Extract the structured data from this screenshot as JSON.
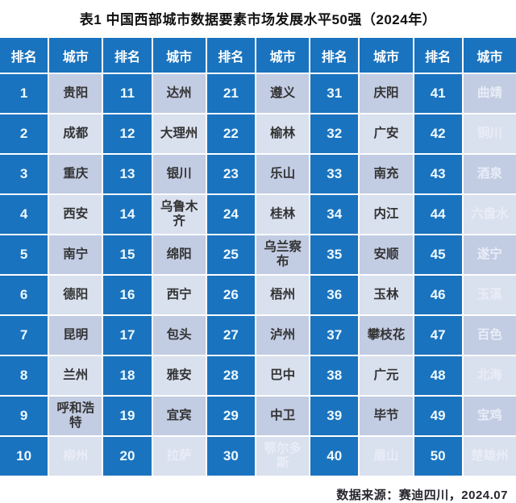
{
  "title": "表1 中国西部城市数据要素市场发展水平50强（2024年）",
  "source": "数据来源：赛迪四川，2024.07",
  "table_headers": {
    "rank": "排名",
    "city": "城市"
  },
  "colors": {
    "cell_blue": "#1a73be",
    "city_cell_odd_row": "#c2cce3",
    "city_cell_even_row": "#d9e0ee",
    "city_text": "#333333",
    "faint_city_text": "#e9edf7",
    "header_text": "#ffffff",
    "title_text": "#111111",
    "source_text": "#26262e"
  },
  "chart_data": {
    "type": "table",
    "title": "表1 中国西部城市数据要素市场发展水平50强（2024年）",
    "columns_pattern": [
      "排名",
      "城市"
    ],
    "column_groups": 5,
    "rows_per_group": 10,
    "source": "数据来源：赛迪四川，2024.07",
    "ranking": [
      {
        "rank": 1,
        "city": "贵阳",
        "faint": false
      },
      {
        "rank": 2,
        "city": "成都",
        "faint": false
      },
      {
        "rank": 3,
        "city": "重庆",
        "faint": false
      },
      {
        "rank": 4,
        "city": "西安",
        "faint": false
      },
      {
        "rank": 5,
        "city": "南宁",
        "faint": false
      },
      {
        "rank": 6,
        "city": "德阳",
        "faint": false
      },
      {
        "rank": 7,
        "city": "昆明",
        "faint": false
      },
      {
        "rank": 8,
        "city": "兰州",
        "faint": false
      },
      {
        "rank": 9,
        "city": "呼和浩特",
        "faint": false
      },
      {
        "rank": 10,
        "city": "柳州",
        "faint": true
      },
      {
        "rank": 11,
        "city": "达州",
        "faint": false
      },
      {
        "rank": 12,
        "city": "大理州",
        "faint": false
      },
      {
        "rank": 13,
        "city": "银川",
        "faint": false
      },
      {
        "rank": 14,
        "city": "乌鲁木齐",
        "faint": false
      },
      {
        "rank": 15,
        "city": "绵阳",
        "faint": false
      },
      {
        "rank": 16,
        "city": "西宁",
        "faint": false
      },
      {
        "rank": 17,
        "city": "包头",
        "faint": false
      },
      {
        "rank": 18,
        "city": "雅安",
        "faint": false
      },
      {
        "rank": 19,
        "city": "宜宾",
        "faint": false
      },
      {
        "rank": 20,
        "city": "拉萨",
        "faint": true
      },
      {
        "rank": 21,
        "city": "遵义",
        "faint": false
      },
      {
        "rank": 22,
        "city": "榆林",
        "faint": false
      },
      {
        "rank": 23,
        "city": "乐山",
        "faint": false
      },
      {
        "rank": 24,
        "city": "桂林",
        "faint": false
      },
      {
        "rank": 25,
        "city": "乌兰察布",
        "faint": false
      },
      {
        "rank": 26,
        "city": "梧州",
        "faint": false
      },
      {
        "rank": 27,
        "city": "泸州",
        "faint": false
      },
      {
        "rank": 28,
        "city": "巴中",
        "faint": false
      },
      {
        "rank": 29,
        "city": "中卫",
        "faint": false
      },
      {
        "rank": 30,
        "city": "鄂尔多斯",
        "faint": true
      },
      {
        "rank": 31,
        "city": "庆阳",
        "faint": false
      },
      {
        "rank": 32,
        "city": "广安",
        "faint": false
      },
      {
        "rank": 33,
        "city": "南充",
        "faint": false
      },
      {
        "rank": 34,
        "city": "内江",
        "faint": false
      },
      {
        "rank": 35,
        "city": "安顺",
        "faint": false
      },
      {
        "rank": 36,
        "city": "玉林",
        "faint": false
      },
      {
        "rank": 37,
        "city": "攀枝花",
        "faint": false
      },
      {
        "rank": 38,
        "city": "广元",
        "faint": false
      },
      {
        "rank": 39,
        "city": "毕节",
        "faint": false
      },
      {
        "rank": 40,
        "city": "眉山",
        "faint": true
      },
      {
        "rank": 41,
        "city": "曲靖",
        "faint": true
      },
      {
        "rank": 42,
        "city": "铜川",
        "faint": true
      },
      {
        "rank": 43,
        "city": "酒泉",
        "faint": true
      },
      {
        "rank": 44,
        "city": "六盘水",
        "faint": true
      },
      {
        "rank": 45,
        "city": "遂宁",
        "faint": true
      },
      {
        "rank": 46,
        "city": "玉溪",
        "faint": true
      },
      {
        "rank": 47,
        "city": "百色",
        "faint": true
      },
      {
        "rank": 48,
        "city": "北海",
        "faint": true
      },
      {
        "rank": 49,
        "city": "宝鸡",
        "faint": true
      },
      {
        "rank": 50,
        "city": "楚雄州",
        "faint": true
      }
    ]
  }
}
